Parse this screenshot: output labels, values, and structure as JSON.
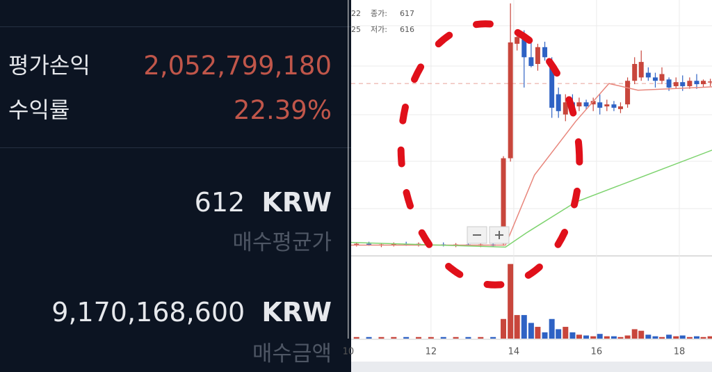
{
  "panel": {
    "profit_label": "평가손익",
    "profit_value": "2,052,799,180",
    "rate_label": "수익률",
    "rate_value": "22.39%",
    "avg_price": "612",
    "avg_unit": "KRW",
    "avg_label": "매수평균가",
    "amount": "9,170,168,600",
    "amount_unit": "KRW",
    "amount_label": "매수금액"
  },
  "chart_data": {
    "type": "candlestick",
    "legend_rows": [
      [
        "22",
        "종가:",
        "617"
      ],
      [
        "25",
        "저가:",
        "616"
      ]
    ],
    "up_color": "#c8463c",
    "down_color": "#2e62c4",
    "x": [
      10.2,
      10.5,
      10.8,
      11.1,
      11.4,
      11.7,
      12.0,
      12.3,
      12.6,
      12.9,
      13.2,
      13.5,
      13.75,
      13.92,
      14.08,
      14.25,
      14.42,
      14.58,
      14.75,
      14.92,
      15.08,
      15.25,
      15.42,
      15.58,
      15.75,
      15.92,
      16.08,
      16.25,
      16.42,
      16.58,
      16.75,
      16.92,
      17.08,
      17.25,
      17.42,
      17.58,
      17.75,
      17.92,
      18.08,
      18.25,
      18.42,
      18.58,
      18.75
    ],
    "open": [
      457,
      458,
      456,
      457,
      458,
      457,
      456,
      457,
      456,
      457,
      456,
      457,
      458,
      585,
      755,
      762,
      735,
      725,
      750,
      725,
      680,
      650,
      668,
      662,
      668,
      665,
      668,
      662,
      665,
      658,
      665,
      700,
      705,
      712,
      705,
      700,
      702,
      692,
      698,
      692,
      700,
      695,
      698
    ],
    "high": [
      460,
      461,
      459,
      460,
      461,
      460,
      459,
      460,
      459,
      460,
      459,
      460,
      588,
      815,
      770,
      775,
      760,
      755,
      758,
      735,
      690,
      680,
      680,
      675,
      672,
      675,
      680,
      672,
      670,
      668,
      705,
      735,
      745,
      720,
      712,
      720,
      705,
      705,
      708,
      705,
      710,
      702,
      703
    ],
    "low": [
      454,
      455,
      453,
      454,
      455,
      454,
      453,
      454,
      453,
      454,
      453,
      454,
      455,
      580,
      745,
      690,
      720,
      715,
      730,
      645,
      645,
      640,
      650,
      655,
      658,
      655,
      650,
      655,
      655,
      652,
      660,
      695,
      700,
      700,
      690,
      695,
      685,
      688,
      685,
      688,
      688,
      690,
      692
    ],
    "close": [
      458,
      456,
      457,
      458,
      456,
      458,
      457,
      456,
      457,
      456,
      457,
      455,
      585,
      757,
      765,
      735,
      722,
      750,
      735,
      660,
      655,
      668,
      660,
      668,
      662,
      670,
      660,
      665,
      660,
      662,
      700,
      725,
      728,
      705,
      700,
      710,
      690,
      698,
      692,
      700,
      695,
      700,
      699
    ],
    "volume": [
      2,
      2,
      2,
      2,
      2,
      2,
      2,
      2,
      2,
      2,
      2,
      2,
      25,
      95,
      30,
      30,
      20,
      15,
      8,
      25,
      12,
      15,
      8,
      5,
      4,
      3,
      6,
      3,
      3,
      2,
      4,
      12,
      10,
      5,
      3,
      2,
      5,
      3,
      4,
      2,
      3,
      2,
      3
    ],
    "ma_lines": [
      {
        "color": "#e8867c",
        "x": [
          10.07,
          13.8,
          14.5,
          15.5,
          16.3,
          17.0,
          18.79
        ],
        "values": [
          456,
          456,
          560,
          640,
          696,
          686,
          691
        ]
      },
      {
        "color": "#7dd36e",
        "x": [
          10.07,
          13.8,
          14.3,
          15.5,
          18.79
        ],
        "values": [
          460,
          453,
          474,
          520,
          597
        ]
      }
    ],
    "price_line": 696,
    "xlim": [
      10.07,
      18.79
    ],
    "ylim": [
      440,
      820
    ],
    "volume_ylim": [
      0,
      100
    ],
    "xticks": [
      10,
      12,
      14,
      16,
      18
    ],
    "grid": true
  }
}
